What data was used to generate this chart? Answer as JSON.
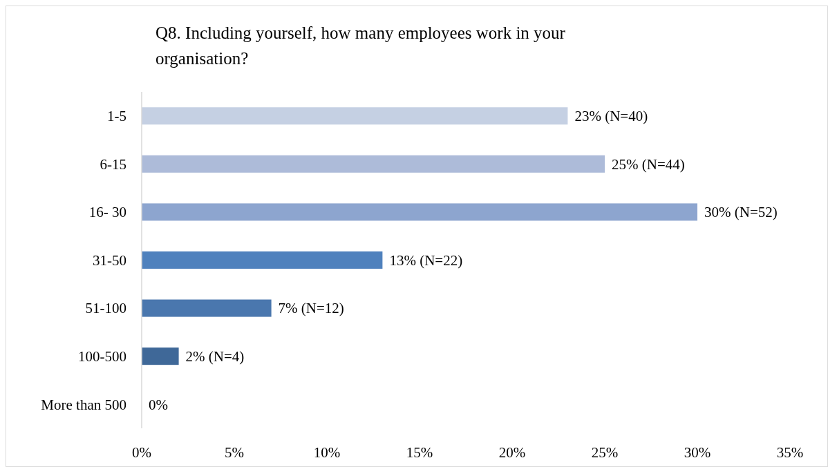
{
  "chart_data": {
    "type": "bar",
    "orientation": "horizontal",
    "title": "Q8. Including yourself, how many employees work in your organisation?",
    "categories": [
      "1-5",
      "6-15",
      "16- 30",
      "31-50",
      "51-100",
      "100-500",
      "More than 500"
    ],
    "values": [
      23,
      25,
      30,
      13,
      7,
      2,
      0
    ],
    "colors": [
      "#c5d0e3",
      "#adbbd9",
      "#8da5cf",
      "#4f81bd",
      "#4a77ae",
      "#3f6898",
      "#3a5f8c"
    ],
    "value_labels": [
      "23% (N=40)",
      "25% (N=44)",
      "30% (N=52)",
      "13% (N=22)",
      "7% (N=12)",
      "2% (N=4)",
      "0%"
    ],
    "xlim": [
      0,
      35
    ],
    "xticks": [
      {
        "value": 0,
        "label": "0%"
      },
      {
        "value": 5,
        "label": "5%"
      },
      {
        "value": 10,
        "label": "10%"
      },
      {
        "value": 15,
        "label": "15%"
      },
      {
        "value": 20,
        "label": "20%"
      },
      {
        "value": 25,
        "label": "25%"
      },
      {
        "value": 30,
        "label": "30%"
      },
      {
        "value": 35,
        "label": "35%"
      }
    ],
    "tick_labels": true
  }
}
